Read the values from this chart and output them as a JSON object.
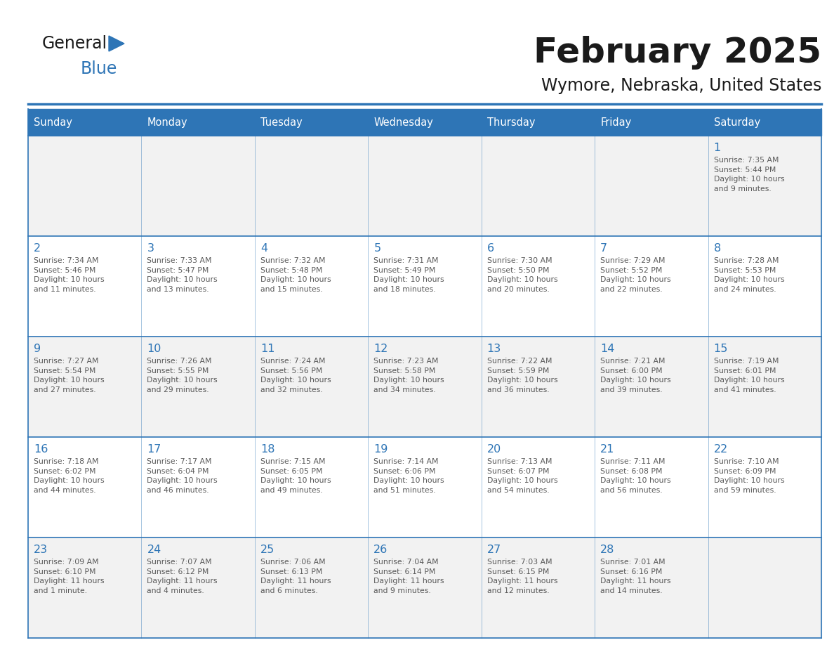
{
  "title": "February 2025",
  "subtitle": "Wymore, Nebraska, United States",
  "header_bg": "#2E75B6",
  "header_text_color": "#FFFFFF",
  "cell_bg_odd": "#F2F2F2",
  "cell_bg_even": "#FFFFFF",
  "day_number_color": "#2E75B6",
  "cell_text_color": "#595959",
  "border_color": "#2E75B6",
  "days_of_week": [
    "Sunday",
    "Monday",
    "Tuesday",
    "Wednesday",
    "Thursday",
    "Friday",
    "Saturday"
  ],
  "weeks": [
    [
      {
        "day": null,
        "info": null
      },
      {
        "day": null,
        "info": null
      },
      {
        "day": null,
        "info": null
      },
      {
        "day": null,
        "info": null
      },
      {
        "day": null,
        "info": null
      },
      {
        "day": null,
        "info": null
      },
      {
        "day": 1,
        "info": "Sunrise: 7:35 AM\nSunset: 5:44 PM\nDaylight: 10 hours\nand 9 minutes."
      }
    ],
    [
      {
        "day": 2,
        "info": "Sunrise: 7:34 AM\nSunset: 5:46 PM\nDaylight: 10 hours\nand 11 minutes."
      },
      {
        "day": 3,
        "info": "Sunrise: 7:33 AM\nSunset: 5:47 PM\nDaylight: 10 hours\nand 13 minutes."
      },
      {
        "day": 4,
        "info": "Sunrise: 7:32 AM\nSunset: 5:48 PM\nDaylight: 10 hours\nand 15 minutes."
      },
      {
        "day": 5,
        "info": "Sunrise: 7:31 AM\nSunset: 5:49 PM\nDaylight: 10 hours\nand 18 minutes."
      },
      {
        "day": 6,
        "info": "Sunrise: 7:30 AM\nSunset: 5:50 PM\nDaylight: 10 hours\nand 20 minutes."
      },
      {
        "day": 7,
        "info": "Sunrise: 7:29 AM\nSunset: 5:52 PM\nDaylight: 10 hours\nand 22 minutes."
      },
      {
        "day": 8,
        "info": "Sunrise: 7:28 AM\nSunset: 5:53 PM\nDaylight: 10 hours\nand 24 minutes."
      }
    ],
    [
      {
        "day": 9,
        "info": "Sunrise: 7:27 AM\nSunset: 5:54 PM\nDaylight: 10 hours\nand 27 minutes."
      },
      {
        "day": 10,
        "info": "Sunrise: 7:26 AM\nSunset: 5:55 PM\nDaylight: 10 hours\nand 29 minutes."
      },
      {
        "day": 11,
        "info": "Sunrise: 7:24 AM\nSunset: 5:56 PM\nDaylight: 10 hours\nand 32 minutes."
      },
      {
        "day": 12,
        "info": "Sunrise: 7:23 AM\nSunset: 5:58 PM\nDaylight: 10 hours\nand 34 minutes."
      },
      {
        "day": 13,
        "info": "Sunrise: 7:22 AM\nSunset: 5:59 PM\nDaylight: 10 hours\nand 36 minutes."
      },
      {
        "day": 14,
        "info": "Sunrise: 7:21 AM\nSunset: 6:00 PM\nDaylight: 10 hours\nand 39 minutes."
      },
      {
        "day": 15,
        "info": "Sunrise: 7:19 AM\nSunset: 6:01 PM\nDaylight: 10 hours\nand 41 minutes."
      }
    ],
    [
      {
        "day": 16,
        "info": "Sunrise: 7:18 AM\nSunset: 6:02 PM\nDaylight: 10 hours\nand 44 minutes."
      },
      {
        "day": 17,
        "info": "Sunrise: 7:17 AM\nSunset: 6:04 PM\nDaylight: 10 hours\nand 46 minutes."
      },
      {
        "day": 18,
        "info": "Sunrise: 7:15 AM\nSunset: 6:05 PM\nDaylight: 10 hours\nand 49 minutes."
      },
      {
        "day": 19,
        "info": "Sunrise: 7:14 AM\nSunset: 6:06 PM\nDaylight: 10 hours\nand 51 minutes."
      },
      {
        "day": 20,
        "info": "Sunrise: 7:13 AM\nSunset: 6:07 PM\nDaylight: 10 hours\nand 54 minutes."
      },
      {
        "day": 21,
        "info": "Sunrise: 7:11 AM\nSunset: 6:08 PM\nDaylight: 10 hours\nand 56 minutes."
      },
      {
        "day": 22,
        "info": "Sunrise: 7:10 AM\nSunset: 6:09 PM\nDaylight: 10 hours\nand 59 minutes."
      }
    ],
    [
      {
        "day": 23,
        "info": "Sunrise: 7:09 AM\nSunset: 6:10 PM\nDaylight: 11 hours\nand 1 minute."
      },
      {
        "day": 24,
        "info": "Sunrise: 7:07 AM\nSunset: 6:12 PM\nDaylight: 11 hours\nand 4 minutes."
      },
      {
        "day": 25,
        "info": "Sunrise: 7:06 AM\nSunset: 6:13 PM\nDaylight: 11 hours\nand 6 minutes."
      },
      {
        "day": 26,
        "info": "Sunrise: 7:04 AM\nSunset: 6:14 PM\nDaylight: 11 hours\nand 9 minutes."
      },
      {
        "day": 27,
        "info": "Sunrise: 7:03 AM\nSunset: 6:15 PM\nDaylight: 11 hours\nand 12 minutes."
      },
      {
        "day": 28,
        "info": "Sunrise: 7:01 AM\nSunset: 6:16 PM\nDaylight: 11 hours\nand 14 minutes."
      },
      {
        "day": null,
        "info": null
      }
    ]
  ]
}
